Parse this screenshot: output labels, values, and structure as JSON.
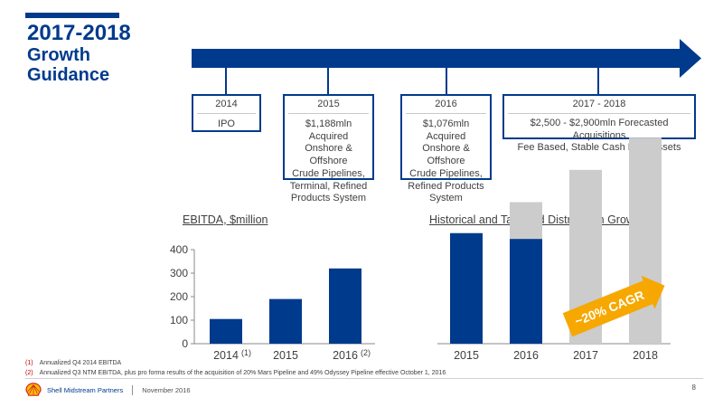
{
  "title": {
    "line1": "2017-2018",
    "line2": "Growth",
    "line3": "Guidance"
  },
  "colors": {
    "navy": "#003a8c",
    "gray": "#cccccc",
    "orange": "#f6a800",
    "red": "#c00000"
  },
  "timeline": [
    {
      "year": "2014",
      "lines": [
        "IPO"
      ]
    },
    {
      "year": "2015",
      "lines": [
        "$1,188mln Acquired",
        "Onshore & Offshore",
        "Crude Pipelines,",
        "Terminal, Refined",
        "Products System"
      ]
    },
    {
      "year": "2016",
      "lines": [
        "$1,076mln Acquired",
        "Onshore & Offshore",
        "Crude Pipelines,",
        "Refined Products",
        "System"
      ]
    },
    {
      "year": "2017 - 2018",
      "lines": [
        "$2,500 - $2,900mln Forecasted Acquisitions",
        "Fee Based, Stable Cash Flow Assets"
      ]
    }
  ],
  "chart_data": [
    {
      "type": "bar",
      "title": "EBITDA, $million",
      "categories": [
        "2014",
        "2015",
        "2016"
      ],
      "category_notes": [
        "(1)",
        "",
        "(2)"
      ],
      "values": [
        105,
        190,
        320
      ],
      "ylim": [
        0,
        400
      ],
      "yticks": [
        "0",
        "100",
        "200",
        "300",
        "400"
      ],
      "grid": false
    },
    {
      "type": "bar",
      "title": "Historical and Targeted Distribution Growth",
      "categories": [
        "2015",
        "2016",
        "2017",
        "2018"
      ],
      "stacked": true,
      "series": [
        {
          "values": [
            250,
            237,
            0,
            0
          ],
          "color": "#003a8c"
        },
        {
          "values": [
            0,
            83,
            393,
            466
          ],
          "color": "#cccccc"
        }
      ],
      "annotation": "~20% CAGR",
      "yaxis_labels_shown": false
    }
  ],
  "footnotes": [
    {
      "num": "(1)",
      "text": "Annualized Q4 2014 EBITDA"
    },
    {
      "num": "(2)",
      "text": "Annualized Q3 NTM EBITDA, plus pro forma results of the acquisition of 20% Mars Pipeline and 49% Odyssey Pipeline effective October 1, 2016"
    }
  ],
  "footer": {
    "company": "Shell Midstream Partners",
    "date": "November 2016",
    "page": "8"
  }
}
